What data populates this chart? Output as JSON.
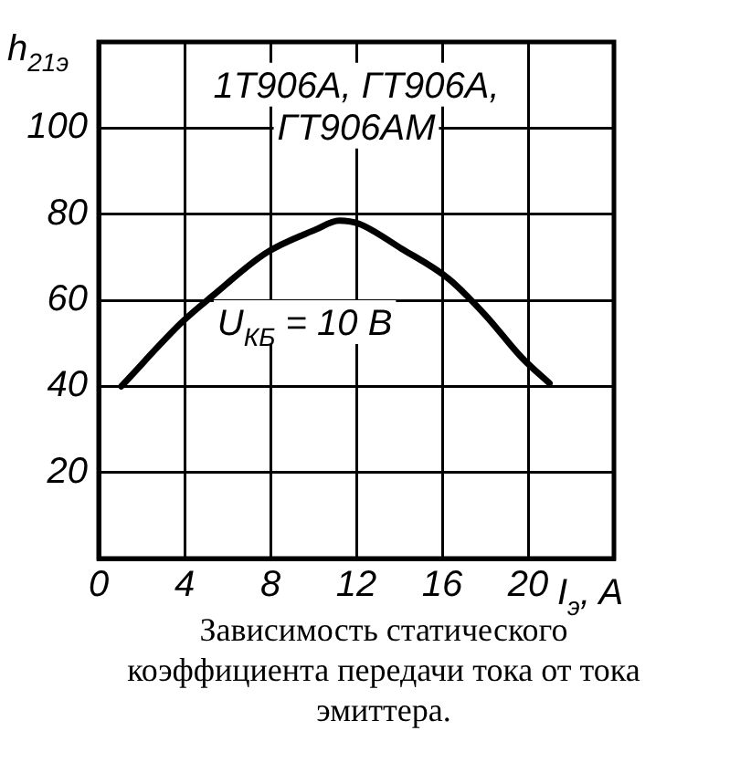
{
  "chart_data": {
    "type": "line",
    "title": "Зависимость статического коэффициента передачи тока от тока эмиттера.",
    "xlabel": "I$_{э}$, A",
    "ylabel": "h$_{21э}$",
    "annotations": [
      "1Т906А, ГТ906А, ГТ906АМ",
      "U$_{КБ}$ = 10 В"
    ],
    "x": [
      1.05,
      3.9,
      5.3,
      7.8,
      10.1,
      11.2,
      12.1,
      14.1,
      16.3,
      18.0,
      19.7,
      21.0
    ],
    "series": [
      {
        "color": "#000000",
        "values": [
          40,
          55,
          61,
          71,
          76.4,
          78.5,
          77.8,
          72,
          65,
          56.6,
          46.7,
          40.7
        ]
      }
    ],
    "xlim": [
      0,
      24
    ],
    "xticks": [
      0,
      4,
      8,
      12,
      16,
      20
    ],
    "ylim": [
      0,
      120
    ],
    "yticks": [
      20,
      40,
      60,
      80,
      100
    ],
    "grid": true,
    "legend": false,
    "marker": "none",
    "line_style": "solid"
  }
}
